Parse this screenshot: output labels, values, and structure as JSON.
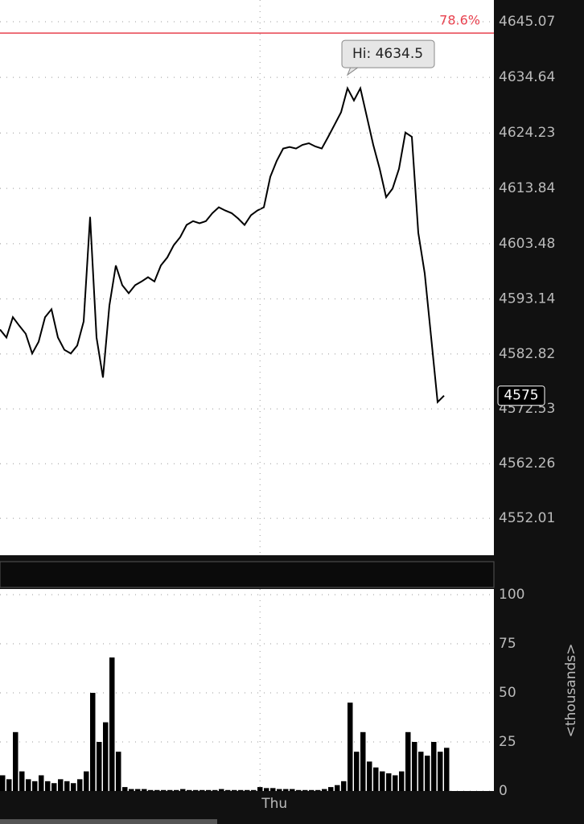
{
  "chart_data": [
    {
      "type": "line",
      "values": [
        4587.4,
        4585.9,
        4589.7,
        4588.1,
        4586.6,
        4582.9,
        4585.1,
        4589.7,
        4591.2,
        4585.9,
        4583.6,
        4582.9,
        4584.4,
        4588.9,
        4608.5,
        4585.9,
        4578.4,
        4591.9,
        4599.4,
        4595.7,
        4594.2,
        4595.7,
        4596.4,
        4597.2,
        4596.4,
        4599.4,
        4600.9,
        4603.2,
        4604.7,
        4607.0,
        4607.7,
        4607.3,
        4607.7,
        4609.2,
        4610.3,
        4609.7,
        4609.2,
        4608.2,
        4607.0,
        4608.8,
        4609.7,
        4610.3,
        4616.0,
        4619.0,
        4621.3,
        4621.6,
        4621.3,
        4622.0,
        4622.3,
        4621.7,
        4621.3,
        4623.5,
        4625.8,
        4628.1,
        4632.6,
        4630.3,
        4632.6,
        4627.3,
        4622.0,
        4617.5,
        4612.2,
        4613.8,
        4617.5,
        4624.3,
        4623.5,
        4605.5,
        4597.9,
        4585.9,
        4573.8,
        4575
      ],
      "color": "#000000",
      "xlim": [
        0,
        76.75
      ],
      "ylim": [
        4545.1,
        4649.14
      ],
      "yticks": [
        4645.07,
        4634.64,
        4624.23,
        4613.84,
        4603.48,
        4593.14,
        4582.82,
        4572.53,
        4562.26,
        4552.01
      ],
      "grid": true,
      "fib_level": {
        "value": 4642.94,
        "label": "78.6%",
        "color": "#e8424f"
      },
      "high": {
        "value": 4634.5,
        "index": 54,
        "label": "Hi: 4634.5"
      },
      "current_price": {
        "value": 4575,
        "label": "4575"
      }
    },
    {
      "type": "bar",
      "values": [
        8,
        6,
        30,
        10,
        6,
        5,
        8,
        5,
        4,
        6,
        5,
        4,
        6,
        10,
        50,
        25,
        35,
        68,
        20,
        2,
        1,
        1,
        1,
        0.5,
        0.5,
        0.5,
        0.5,
        0.5,
        1,
        0.5,
        0.5,
        0.5,
        0.5,
        0.5,
        1,
        0.5,
        0.5,
        0.5,
        0.5,
        0.5,
        2,
        1.5,
        1.5,
        1,
        1,
        1,
        0.5,
        0.5,
        0.5,
        0.5,
        1,
        2,
        3,
        5,
        45,
        20,
        30,
        15,
        12,
        10,
        9,
        8,
        10,
        30,
        25,
        20,
        18,
        25,
        20,
        22
      ],
      "color": "#000000",
      "xlim": [
        0,
        76.75
      ],
      "xticks": [
        {
          "value": 40.4,
          "label": "Thu"
        }
      ],
      "ylim": [
        0,
        100
      ],
      "yticks": [
        0,
        25,
        50,
        75,
        100
      ],
      "ylabel": "<thousands>",
      "grid": true
    }
  ]
}
